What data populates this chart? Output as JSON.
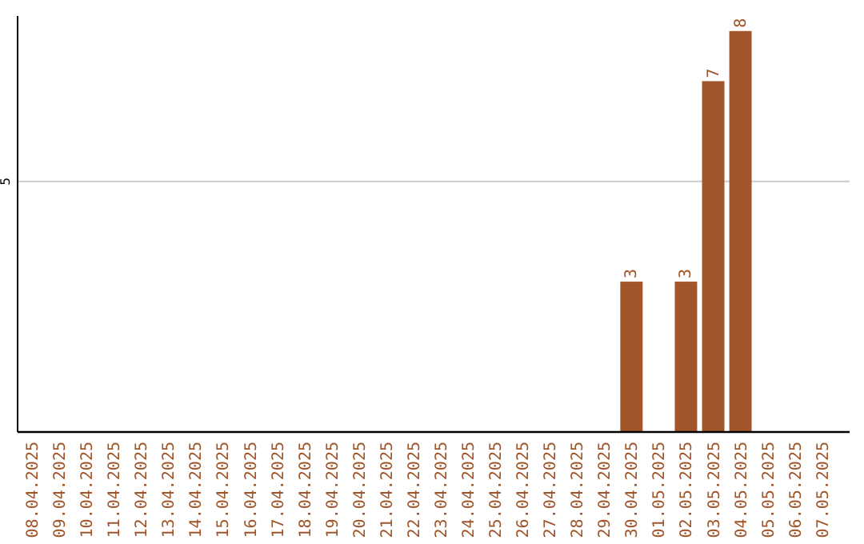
{
  "chart_data": {
    "type": "bar",
    "categories": [
      "08.04.2025",
      "09.04.2025",
      "10.04.2025",
      "11.04.2025",
      "12.04.2025",
      "13.04.2025",
      "14.04.2025",
      "15.04.2025",
      "16.04.2025",
      "17.04.2025",
      "18.04.2025",
      "19.04.2025",
      "20.04.2025",
      "21.04.2025",
      "22.04.2025",
      "23.04.2025",
      "24.04.2025",
      "25.04.2025",
      "26.04.2025",
      "27.04.2025",
      "28.04.2025",
      "29.04.2025",
      "30.04.2025",
      "01.05.2025",
      "02.05.2025",
      "03.05.2025",
      "04.05.2025",
      "05.05.2025",
      "06.05.2025",
      "07.05.2025"
    ],
    "values": [
      null,
      null,
      null,
      null,
      null,
      null,
      null,
      null,
      null,
      null,
      null,
      null,
      null,
      null,
      null,
      null,
      null,
      null,
      null,
      null,
      null,
      null,
      3,
      null,
      3,
      7,
      8,
      null,
      null,
      null
    ],
    "color": "#a0562a",
    "ylim": [
      0,
      8.3
    ],
    "yticks": [
      5
    ],
    "grid": "y",
    "data_labels": true
  }
}
